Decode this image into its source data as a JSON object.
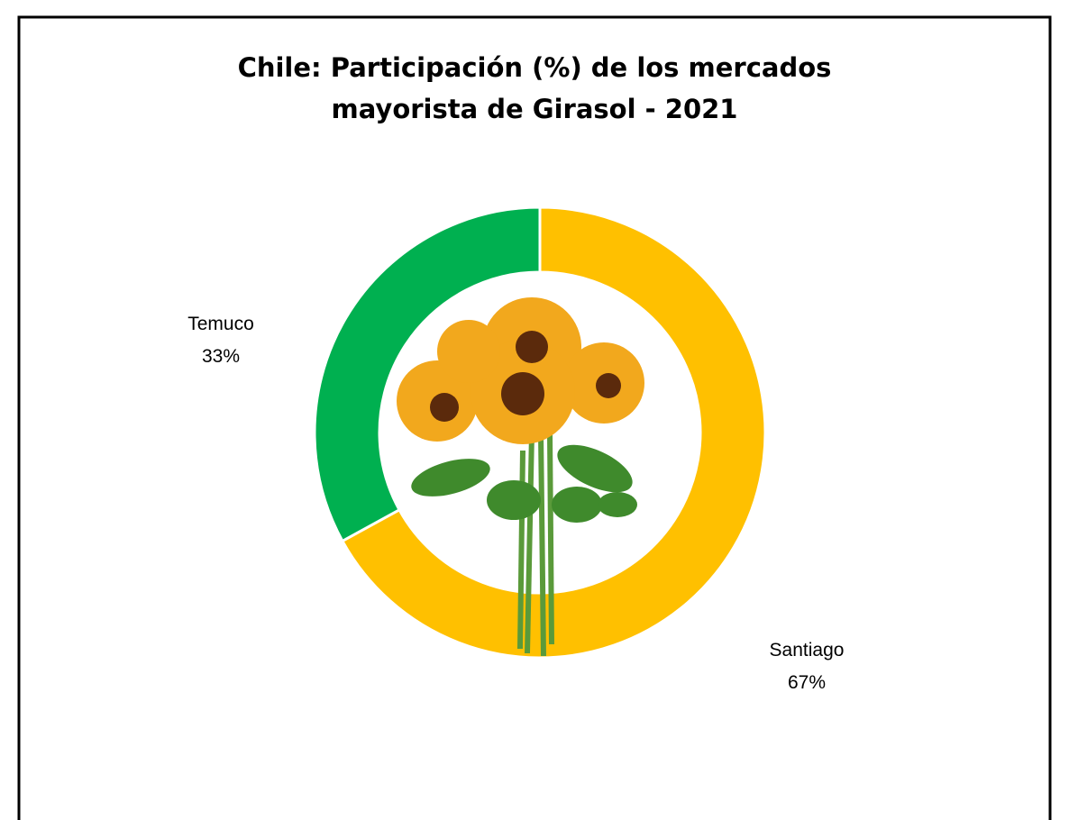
{
  "chart_data": {
    "type": "donut",
    "title": "Chile: Participación (%) de los mercados mayorista de Girasol - 2021",
    "categories": [
      "Santiago",
      "Temuco"
    ],
    "values": [
      67,
      33
    ],
    "value_labels": [
      "67%",
      "33%"
    ],
    "colors": [
      "#FFC000",
      "#00B050"
    ]
  }
}
